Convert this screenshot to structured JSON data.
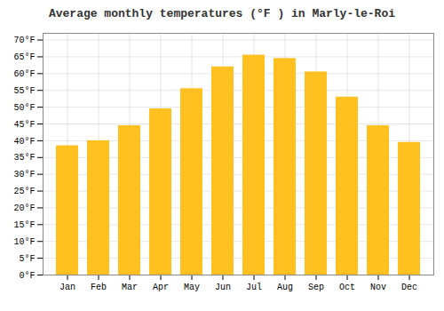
{
  "chart_data": {
    "type": "bar",
    "title": "Average monthly temperatures (°F ) in Marly-le-Roi",
    "categories": [
      "Jan",
      "Feb",
      "Mar",
      "Apr",
      "May",
      "Jun",
      "Jul",
      "Aug",
      "Sep",
      "Oct",
      "Nov",
      "Dec"
    ],
    "values": [
      38.5,
      40.0,
      44.5,
      49.5,
      55.5,
      62.0,
      65.5,
      64.5,
      60.5,
      53.0,
      44.5,
      39.5
    ],
    "color": "#FFC020",
    "ylim": [
      0,
      72
    ],
    "yticks": [
      {
        "value": 0,
        "label": "0°F"
      },
      {
        "value": 5,
        "label": "5°F"
      },
      {
        "value": 10,
        "label": "10°F"
      },
      {
        "value": 15,
        "label": "15°F"
      },
      {
        "value": 20,
        "label": "20°F"
      },
      {
        "value": 25,
        "label": "25°F"
      },
      {
        "value": 30,
        "label": "30°F"
      },
      {
        "value": 35,
        "label": "35°F"
      },
      {
        "value": 40,
        "label": "40°F"
      },
      {
        "value": 45,
        "label": "45°F"
      },
      {
        "value": 50,
        "label": "50°F"
      },
      {
        "value": 55,
        "label": "55°F"
      },
      {
        "value": 60,
        "label": "60°F"
      },
      {
        "value": 65,
        "label": "65°F"
      },
      {
        "value": 70,
        "label": "70°F"
      }
    ],
    "grid": true
  }
}
